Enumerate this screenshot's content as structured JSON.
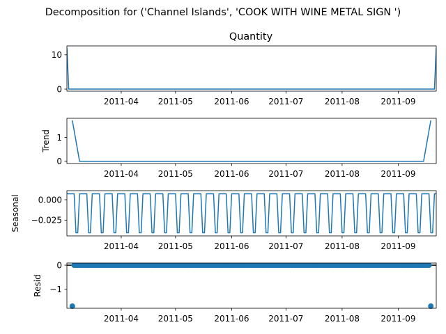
{
  "figure": {
    "suptitle": "Decomposition for ('Channel Islands', 'COOK WITH WINE METAL SIGN ')"
  },
  "chart_data": [
    {
      "type": "line",
      "title": "Quantity",
      "ylabel": "",
      "color": "#1f77b4",
      "xlim": [
        "2011-03-02",
        "2011-09-22"
      ],
      "ylim": [
        -0.6,
        12.6
      ],
      "yticks": [
        0,
        10
      ],
      "ytick_labels": [
        "0",
        "10"
      ],
      "xticks": [
        "2011-04-01",
        "2011-05-01",
        "2011-06-01",
        "2011-07-01",
        "2011-08-01",
        "2011-09-01"
      ],
      "xtick_labels": [
        "2011-04",
        "2011-05",
        "2011-06",
        "2011-07",
        "2011-08",
        "2011-09"
      ],
      "points": [
        {
          "x": "2011-03-02",
          "y": 12
        },
        {
          "x": "2011-03-03",
          "y": 0
        },
        {
          "x": "2011-09-21",
          "y": 0
        },
        {
          "x": "2011-09-22",
          "y": 12
        }
      ]
    },
    {
      "type": "line",
      "title": "",
      "ylabel": "Trend",
      "color": "#1f77b4",
      "xlim": [
        "2011-03-02",
        "2011-09-22"
      ],
      "ylim": [
        -0.09,
        1.8
      ],
      "yticks": [
        0,
        1
      ],
      "ytick_labels": [
        "0",
        "1"
      ],
      "xticks": [
        "2011-04-01",
        "2011-05-01",
        "2011-06-01",
        "2011-07-01",
        "2011-08-01",
        "2011-09-01"
      ],
      "xtick_labels": [
        "2011-04",
        "2011-05",
        "2011-06",
        "2011-07",
        "2011-08",
        "2011-09"
      ],
      "points": [
        {
          "x": "2011-03-05",
          "y": 1.714
        },
        {
          "x": "2011-03-09",
          "y": 0
        },
        {
          "x": "2011-09-15",
          "y": 0
        },
        {
          "x": "2011-09-19",
          "y": 1.714
        }
      ]
    },
    {
      "type": "line",
      "title": "",
      "ylabel": "Seasonal",
      "color": "#1f77b4",
      "xlim": [
        "2011-03-02",
        "2011-09-22"
      ],
      "ylim": [
        -0.0443,
        0.0111
      ],
      "yticks": [
        -0.025,
        0.0
      ],
      "ytick_labels": [
        "−0.025",
        "0.000"
      ],
      "xticks": [
        "2011-04-01",
        "2011-05-01",
        "2011-06-01",
        "2011-07-01",
        "2011-08-01",
        "2011-09-01"
      ],
      "xtick_labels": [
        "2011-04",
        "2011-05",
        "2011-06",
        "2011-07",
        "2011-08",
        "2011-09"
      ],
      "period_days": 7,
      "weekly_pattern": [
        0.0073,
        0.0073,
        0.0073,
        0.0073,
        0.0073,
        -0.0405,
        -0.0405
      ],
      "start": "2011-03-02",
      "end": "2011-09-22"
    },
    {
      "type": "scatter",
      "title": "",
      "ylabel": "Resid",
      "color": "#1f77b4",
      "xlim": [
        "2011-03-02",
        "2011-09-22"
      ],
      "ylim": [
        -1.8,
        0.09
      ],
      "yticks": [
        -1,
        0
      ],
      "ytick_labels": [
        "−1",
        "0"
      ],
      "xticks": [
        "2011-04-01",
        "2011-05-01",
        "2011-06-01",
        "2011-07-01",
        "2011-08-01",
        "2011-09-01"
      ],
      "xtick_labels": [
        "2011-04",
        "2011-05",
        "2011-06",
        "2011-07",
        "2011-08",
        "2011-09"
      ],
      "zero_line": true,
      "outliers": [
        {
          "x": "2011-03-05",
          "y": -1.714
        },
        {
          "x": "2011-09-19",
          "y": -1.714
        }
      ],
      "baseline": {
        "start": "2011-03-06",
        "end": "2011-09-18",
        "y": 0
      }
    }
  ]
}
